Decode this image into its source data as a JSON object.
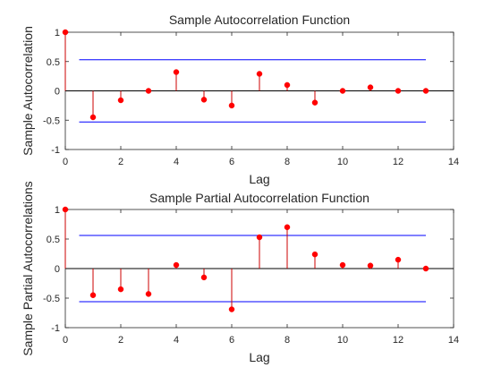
{
  "chart_data": [
    {
      "type": "stem",
      "title": "Sample Autocorrelation Function",
      "xlabel": "Lag",
      "ylabel": "Sample Autocorrelation",
      "xlim": [
        0,
        14
      ],
      "ylim": [
        -1,
        1
      ],
      "xticks": [
        "0",
        "2",
        "4",
        "6",
        "8",
        "10",
        "12",
        "14"
      ],
      "yticks": [
        "-1",
        "-0.5",
        "0",
        "0.5",
        "1"
      ],
      "x": [
        0,
        1,
        2,
        3,
        4,
        5,
        6,
        7,
        8,
        9,
        10,
        11,
        12,
        13
      ],
      "values": [
        1.0,
        -0.45,
        -0.16,
        0.0,
        0.32,
        -0.15,
        -0.25,
        0.29,
        0.1,
        -0.2,
        0.0,
        0.06,
        0.0,
        0.0
      ],
      "bounds": [
        0.53,
        -0.53
      ],
      "bounds_x": [
        0.5,
        13
      ],
      "stem_color": "#cc0000",
      "marker_color": "#ff0000",
      "bound_color": "#0000ff",
      "grid": false
    },
    {
      "type": "stem",
      "title": "Sample Partial Autocorrelation Function",
      "xlabel": "Lag",
      "ylabel": "Sample Partial Autocorrelations",
      "xlim": [
        0,
        14
      ],
      "ylim": [
        -1,
        1
      ],
      "xticks": [
        "0",
        "2",
        "4",
        "6",
        "8",
        "10",
        "12",
        "14"
      ],
      "yticks": [
        "-1",
        "-0.5",
        "0",
        "0.5",
        "1"
      ],
      "x": [
        0,
        1,
        2,
        3,
        4,
        5,
        6,
        7,
        8,
        9,
        10,
        11,
        12,
        13
      ],
      "values": [
        1.0,
        -0.45,
        -0.35,
        -0.43,
        0.06,
        -0.15,
        -0.69,
        0.53,
        0.7,
        0.24,
        0.06,
        0.05,
        0.15,
        0.0
      ],
      "bounds": [
        0.56,
        -0.56
      ],
      "bounds_x": [
        0.5,
        13
      ],
      "stem_color": "#cc0000",
      "marker_color": "#ff0000",
      "bound_color": "#0000ff",
      "grid": false
    }
  ]
}
